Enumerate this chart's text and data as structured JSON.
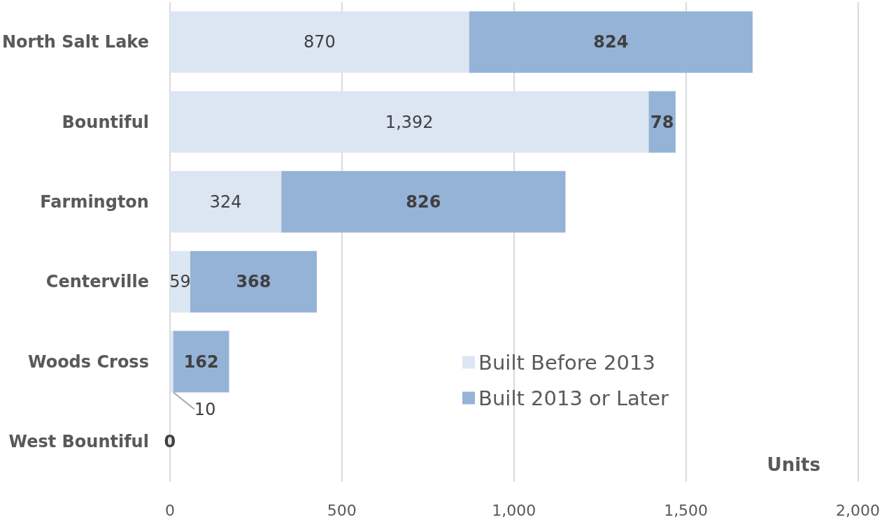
{
  "chart_data": {
    "type": "bar",
    "orientation": "horizontal",
    "stacked": true,
    "xlabel": "Units",
    "categories": [
      "North Salt Lake",
      "Bountiful",
      "Farmington",
      "Centerville",
      "Woods Cross",
      "West Bountiful"
    ],
    "series": [
      {
        "name": "Built Before 2013",
        "color": "#dce6f2",
        "values": [
          870,
          1392,
          324,
          59,
          10,
          0
        ],
        "value_labels": [
          "870",
          "1,392",
          "324",
          "59",
          "10",
          null
        ]
      },
      {
        "name": "Built 2013 or Later",
        "color": "#95b3d7",
        "values": [
          824,
          78,
          826,
          368,
          162,
          0
        ],
        "value_labels": [
          "824",
          "78",
          "826",
          "368",
          "162",
          "0"
        ]
      }
    ],
    "xlim": [
      0,
      2000
    ],
    "xticks": [
      0,
      500,
      {
        "value": 1000,
        "label": "1,000"
      },
      {
        "value": 1500,
        "label": "1,500"
      },
      {
        "value": 2000,
        "label": "2,000"
      }
    ],
    "grid": "x",
    "legend": "bottom right"
  }
}
